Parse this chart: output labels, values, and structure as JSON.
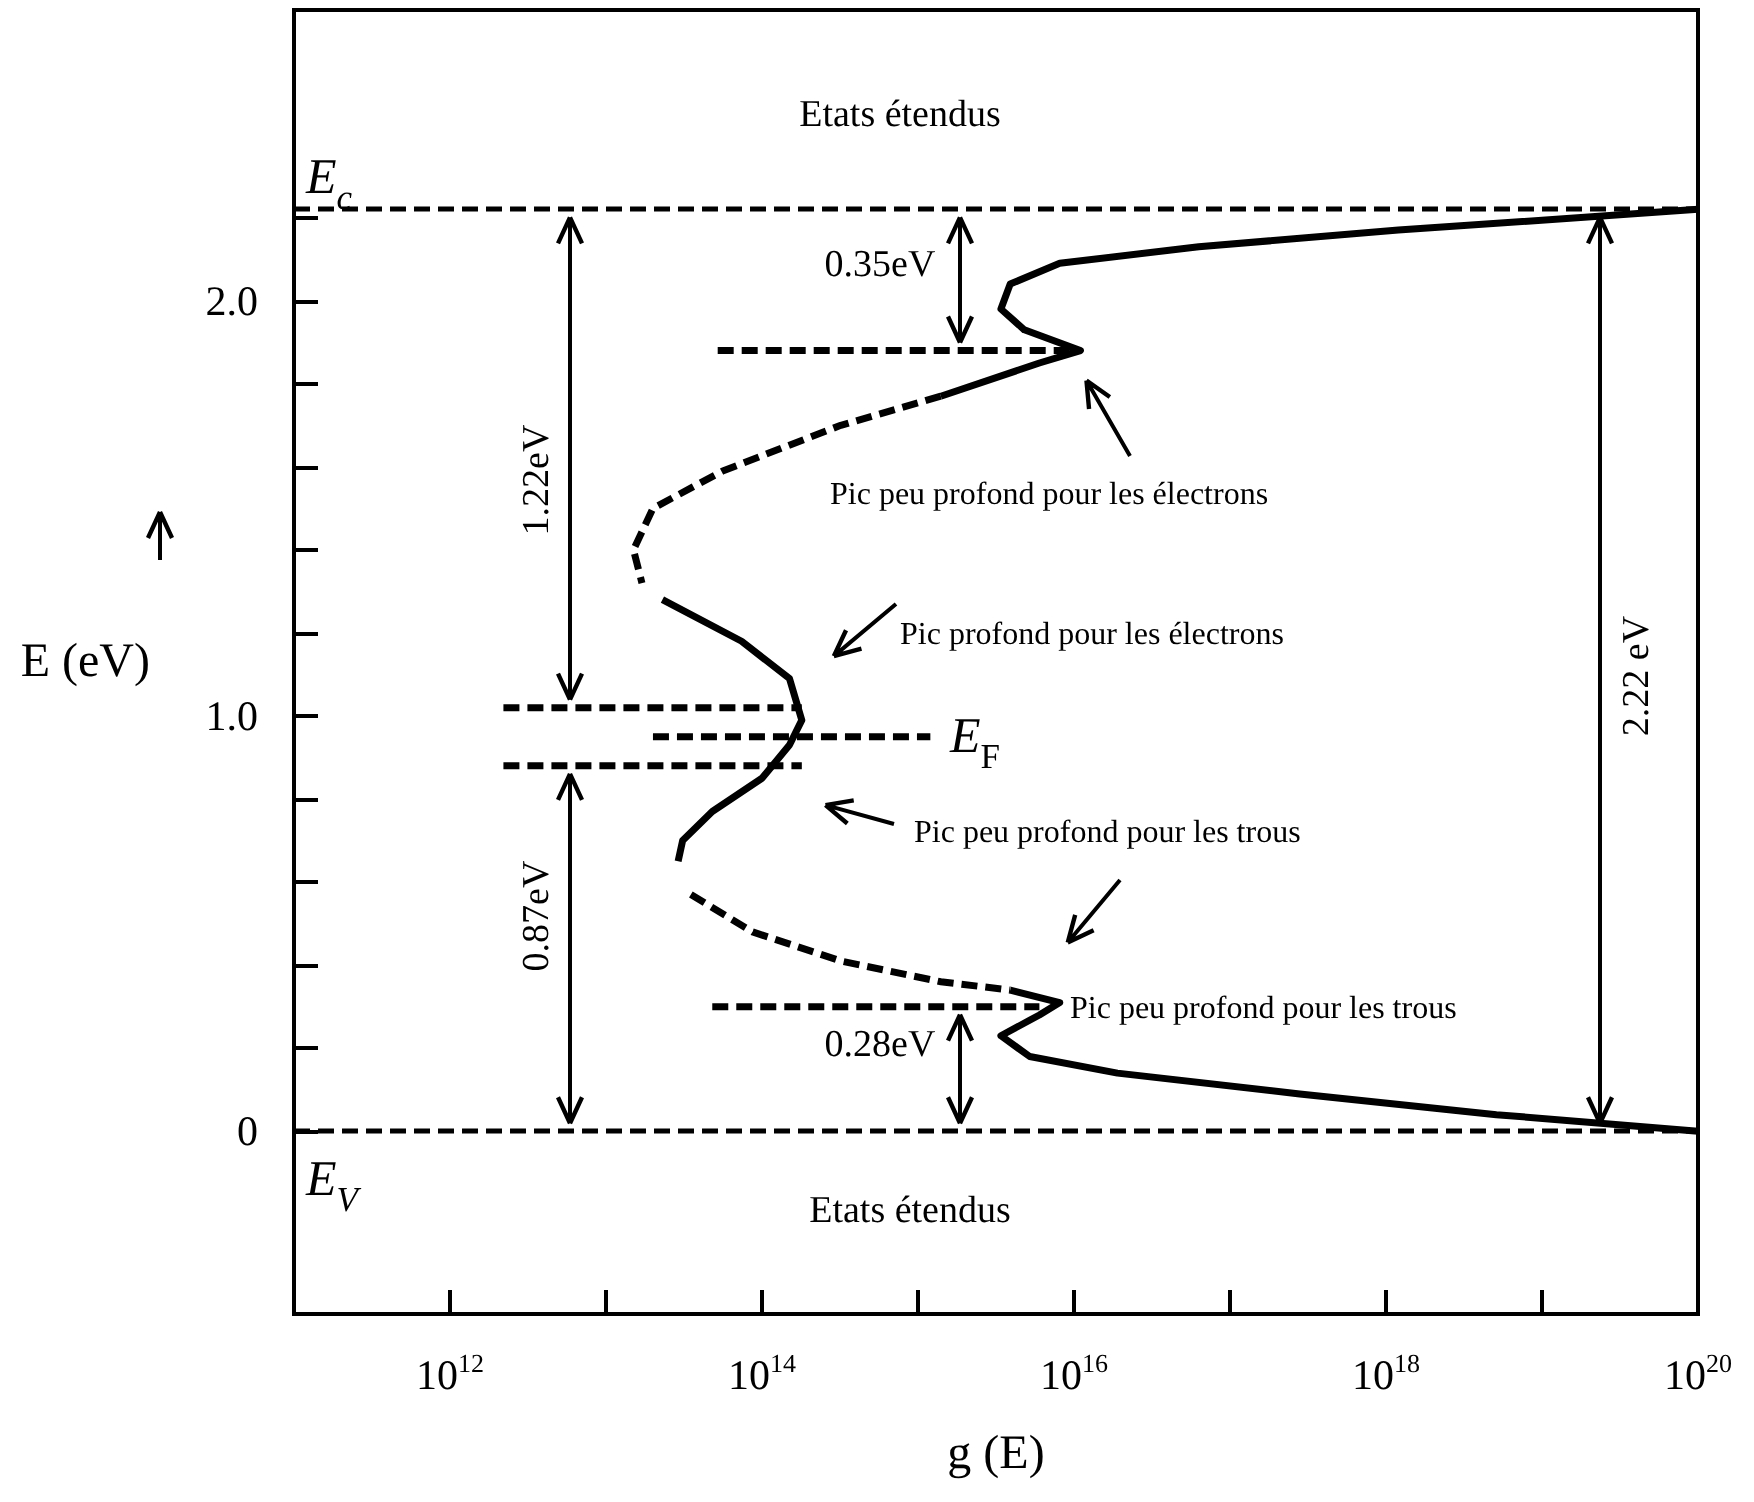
{
  "chart_data": {
    "type": "line",
    "xlabel": "g (E)",
    "ylabel": "E (eV)",
    "log": "x",
    "marker": "none",
    "grid": false,
    "xlim": [
      100000000000.0,
      1e+20
    ],
    "xticks": [
      {
        "value": 1000000000000.0,
        "label": "10$^{12}$"
      },
      {
        "value": 10000000000000.0,
        "label": null
      },
      {
        "value": 100000000000000.0,
        "label": "10$^{14}$"
      },
      {
        "value": 1000000000000000.0,
        "label": null
      },
      {
        "value": 1e+16,
        "label": "10$^{16}$"
      },
      {
        "value": 1e+17,
        "label": null
      },
      {
        "value": 1e+18,
        "label": "10$^{18}$"
      },
      {
        "value": 1e+19,
        "label": null
      },
      {
        "value": 1e+20,
        "label": "10$^{20}$"
      }
    ],
    "ylim": [
      -0.44,
      2.7
    ],
    "yticks": [
      0,
      {
        "value": 0.2,
        "label": null
      },
      {
        "value": 0.4,
        "label": null
      },
      {
        "value": 0.6,
        "label": null
      },
      {
        "value": 0.8,
        "label": null
      },
      {
        "value": 1.0,
        "label": "1.0"
      },
      {
        "value": 1.2,
        "label": null
      },
      {
        "value": 1.4,
        "label": null
      },
      {
        "value": 1.6,
        "label": null
      },
      {
        "value": 1.8,
        "label": null
      },
      {
        "value": 2.0,
        "label": "2.0"
      },
      {
        "value": 2.2,
        "label": null
      }
    ],
    "series": [
      {
        "color": "#000000",
        "line_style": "solid",
        "x": [
          1e+20,
          1.2e+18,
          6.3e+16,
          8100000000000000.0,
          3900000000000000.0,
          3400000000000000.0,
          4800000000000000.0,
          1.1e+16,
          6000000000000000.0,
          1400000000000000.0
        ],
        "values": [
          2.22,
          2.17,
          2.13,
          2.09,
          2.04,
          1.98,
          1.93,
          1.88,
          1.85,
          1.77
        ]
      },
      {
        "color": "#000000",
        "line_style": "dashed",
        "x": [
          1400000000000000.0,
          320000000000000.0,
          56000000000000.0,
          20000000000000.0,
          15000000000000.0,
          17000000000000.0
        ],
        "values": [
          1.77,
          1.7,
          1.59,
          1.5,
          1.4,
          1.32
        ]
      },
      {
        "color": "#000000",
        "line_style": "solid",
        "x": [
          23000000000000.0,
          74000000000000.0,
          150000000000000.0,
          180000000000000.0,
          150000000000000.0,
          100000000000000.0,
          48000000000000.0,
          31000000000000.0,
          29000000000000.0
        ],
        "values": [
          1.28,
          1.18,
          1.09,
          0.99,
          0.93,
          0.85,
          0.77,
          0.7,
          0.65
        ]
      },
      {
        "color": "#000000",
        "line_style": "dashed",
        "x": [
          35000000000000.0,
          87000000000000.0,
          320000000000000.0,
          1400000000000000.0,
          3900000000000000.0
        ],
        "values": [
          0.57,
          0.48,
          0.41,
          0.36,
          0.34
        ]
      },
      {
        "color": "#000000",
        "line_style": "solid",
        "x": [
          3900000000000000.0,
          8100000000000000.0,
          6000000000000000.0,
          3400000000000000.0,
          5200000000000000.0,
          1.9e+16,
          2.8e+17,
          5.1e+18,
          1e+20
        ],
        "values": [
          0.34,
          0.31,
          0.28,
          0.23,
          0.18,
          0.14,
          0.09,
          0.04,
          0.0
        ]
      },
      {
        "color": "#000000",
        "line_style": "dashed",
        "x": [
          52000000000000.0,
          1.1e+16
        ],
        "values": [
          1.88,
          1.88
        ]
      },
      {
        "color": "#000000",
        "line_style": "dashed",
        "x": [
          2200000000000.0,
          180000000000000.0
        ],
        "values": [
          1.02,
          1.02
        ]
      },
      {
        "color": "#000000",
        "line_style": "dashed",
        "x": [
          2200000000000.0,
          180000000000000.0
        ],
        "values": [
          0.88,
          0.88
        ]
      },
      {
        "color": "#000000",
        "line_style": "dashed",
        "x": [
          20000000000000.0,
          1200000000000000.0
        ],
        "values": [
          0.95,
          0.95
        ]
      },
      {
        "color": "#000000",
        "line_style": "dashed",
        "x": [
          48000000000000.0,
          6000000000000000.0
        ],
        "values": [
          0.3,
          0.3
        ]
      }
    ],
    "ref_lines": [
      {
        "axis": "y",
        "value": 2.22,
        "label": "E$_{c}$",
        "color": "#000000",
        "line_style": "dashed"
      },
      {
        "axis": "y",
        "value": 0,
        "label": "E$_{V}$",
        "color": "#000000",
        "line_style": "dashed"
      }
    ],
    "annotations": [
      "Etats étendus",
      "Etats étendus",
      "0.35eV",
      "1.22eV",
      "0.87eV",
      "0.28eV",
      "2.22 eV",
      "E$_{F}$",
      "Pic peu profond pour les électrons",
      "Pic profond pour les électrons",
      "Pic peu profond pour les trous",
      "Pic peu profond pour les trous"
    ]
  }
}
